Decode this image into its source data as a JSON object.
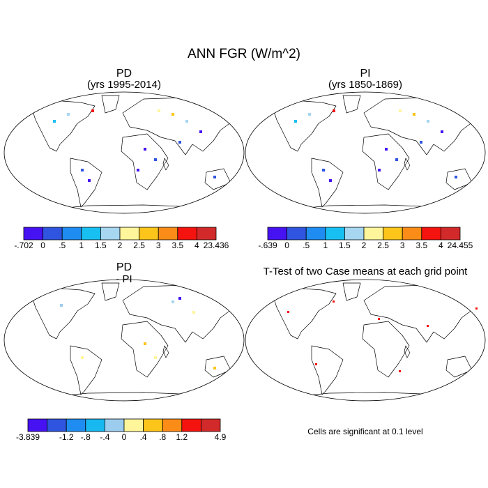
{
  "header": {
    "title": "ANN FGR (W/m^2)"
  },
  "panels": [
    {
      "title": "PD",
      "subtitle": "(yrs 1995-2014)",
      "colorbar": {
        "colors": [
          "#4612f2",
          "#2f55e0",
          "#1e8cf0",
          "#18c0f2",
          "#a6d6f0",
          "#fff59b",
          "#fdc51a",
          "#fb8c17",
          "#f5130f",
          "#d22a2a"
        ],
        "labels": [
          "-.702",
          "0",
          ".5",
          "1",
          "1.5",
          "2",
          "2.5",
          "3",
          "3.5",
          "4",
          "23.436"
        ]
      }
    },
    {
      "title": "PI",
      "subtitle": "(yrs 1850-1869)",
      "colorbar": {
        "colors": [
          "#4612f2",
          "#2f55e0",
          "#1e8cf0",
          "#18c0f2",
          "#a6d6f0",
          "#fff59b",
          "#fdc51a",
          "#fb8c17",
          "#f5130f",
          "#d22a2a"
        ],
        "labels": [
          "-.639",
          "0",
          ".5",
          "1",
          "1.5",
          "2",
          "2.5",
          "3",
          "3.5",
          "4",
          "24.455"
        ]
      }
    },
    {
      "title": "PD",
      "subtitle": "- PI",
      "colorbar": {
        "colors": [
          "#4612f2",
          "#2f55e0",
          "#1e8cf0",
          "#18b8f0",
          "#9dcdee",
          "#fff59b",
          "#fdc51a",
          "#fb8c17",
          "#f5130f",
          "#d22a2a"
        ],
        "labels": [
          "-3.839",
          null,
          "-1.2",
          "-.8",
          "-.4",
          "0",
          ".4",
          ".8",
          "1.2",
          null,
          "4.9"
        ]
      }
    },
    {
      "title": "T-Test of two Case means at each grid point",
      "note": "Cells are significant at 0.1 level"
    }
  ]
}
